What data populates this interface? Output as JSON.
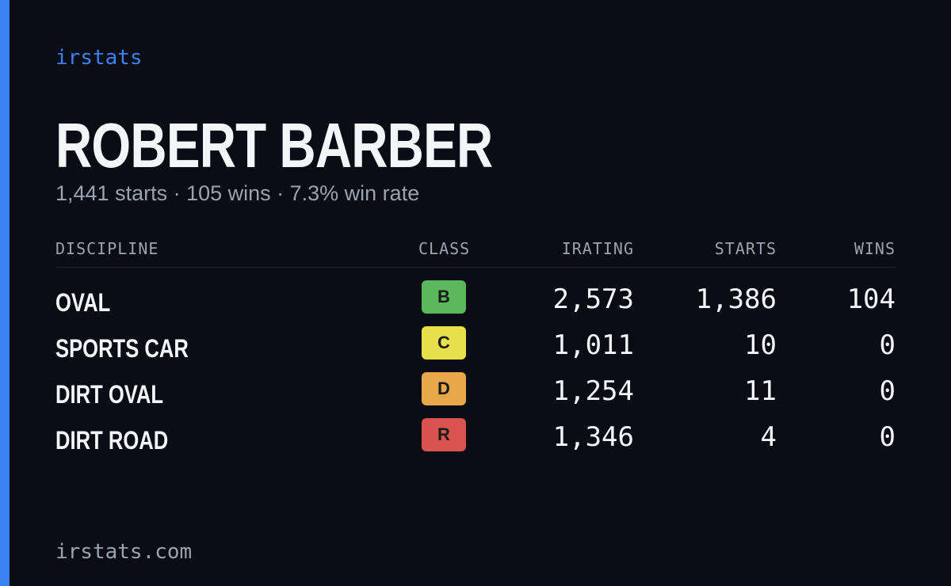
{
  "brand": "irstats",
  "driver": {
    "name": "ROBERT BARBER",
    "summary": "1,441 starts · 105 wins · 7.3% win rate"
  },
  "table": {
    "headers": [
      "DISCIPLINE",
      "CLASS",
      "IRATING",
      "STARTS",
      "WINS"
    ],
    "rows": [
      [
        "OVAL",
        "B",
        "2,573",
        "1,386",
        "104"
      ],
      [
        "SPORTS CAR",
        "C",
        "1,011",
        "10",
        "0"
      ],
      [
        "DIRT OVAL",
        "D",
        "1,254",
        "11",
        "0"
      ],
      [
        "DIRT ROAD",
        "R",
        "1,346",
        "4",
        "0"
      ]
    ]
  },
  "footer": "irstats.com"
}
